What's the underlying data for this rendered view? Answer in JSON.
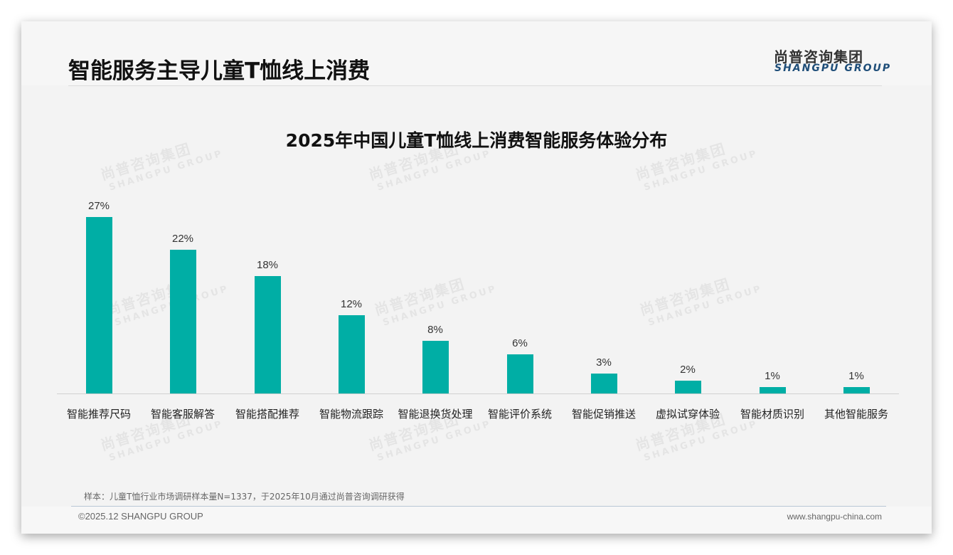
{
  "header": {
    "title": "智能服务主导儿童T恤线上消费",
    "logo_cn": "尚普咨询集团",
    "logo_en": "SHANGPU GROUP"
  },
  "watermark": {
    "cn": "尚普咨询集团",
    "en": "SHANGPU GROUP"
  },
  "colors": {
    "bar": "#00aea5",
    "logo_en": "#1f4e79",
    "background": "#f3f3f3"
  },
  "chart_data": {
    "type": "bar",
    "title": "2025年中国儿童T恤线上消费智能服务体验分布",
    "xlabel": "",
    "ylabel": "",
    "ylim": [
      0,
      30
    ],
    "grid": false,
    "legend": "none",
    "categories": [
      "智能推荐尺码",
      "智能客服解答",
      "智能搭配推荐",
      "智能物流跟踪",
      "智能退换货处理",
      "智能评价系统",
      "智能促销推送",
      "虚拟试穿体验",
      "智能材质识别",
      "其他智能服务"
    ],
    "values": [
      27,
      22,
      18,
      12,
      8,
      6,
      3,
      2,
      1,
      1
    ],
    "value_labels": [
      "27%",
      "22%",
      "18%",
      "12%",
      "8%",
      "6%",
      "3%",
      "2%",
      "1%",
      "1%"
    ],
    "unit": "%"
  },
  "footer": {
    "note": "样本：儿童T恤行业市场调研样本量N=1337，于2025年10月通过尚普咨询调研获得",
    "copyright": "©2025.12 SHANGPU GROUP",
    "website": "www.shangpu-china.com"
  }
}
